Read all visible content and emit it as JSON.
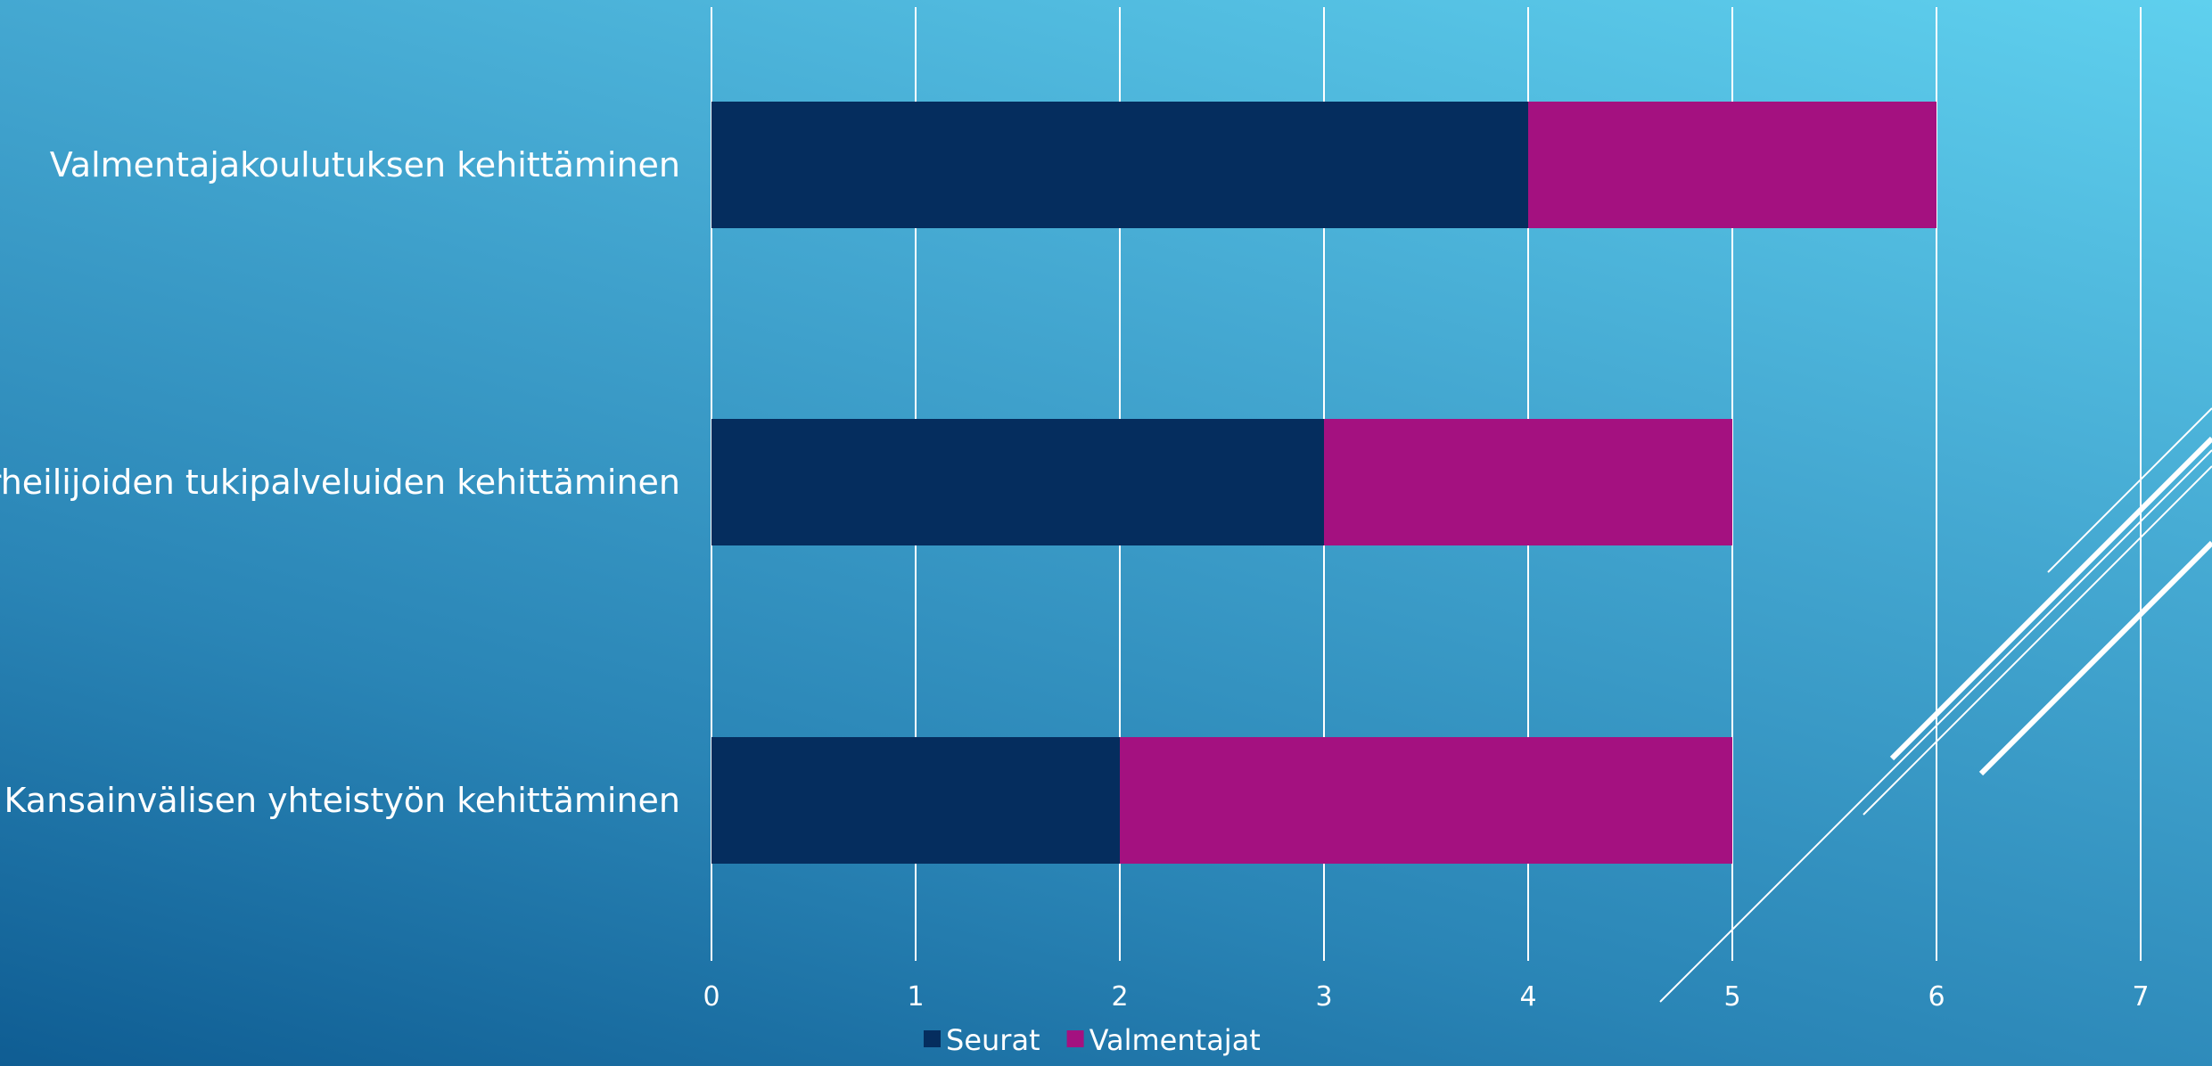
{
  "chart_data": {
    "type": "bar",
    "orientation": "horizontal",
    "stacked": true,
    "categories": [
      "Valmentajakoulutuksen kehittäminen",
      "Urheilijoiden tukipalveluiden kehittäminen",
      "Kansainvälisen yhteistyön kehittäminen"
    ],
    "series": [
      {
        "name": "Seurat",
        "values": [
          4,
          3,
          2
        ],
        "color": "#052d5e"
      },
      {
        "name": "Valmentajat",
        "values": [
          2,
          2,
          3
        ],
        "color": "#a41180"
      }
    ],
    "xlim": [
      0,
      7
    ],
    "xticks": [
      "0",
      "1",
      "2",
      "3",
      "4",
      "5",
      "6",
      "7"
    ],
    "grid": true,
    "legend": "bottom-center"
  }
}
